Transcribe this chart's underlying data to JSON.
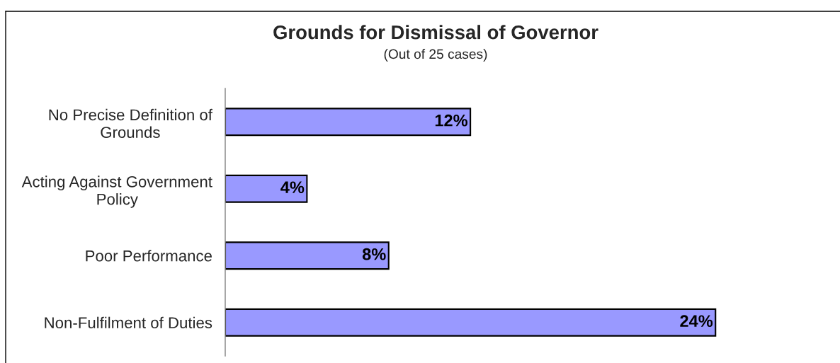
{
  "chart_data": {
    "type": "bar",
    "orientation": "horizontal",
    "title": "Grounds for Dismissal of Governor",
    "subtitle": "(Out of 25 cases)",
    "categories": [
      "No Precise Definition of\nGrounds",
      "Acting Against Government\nPolicy",
      "Poor Performance",
      "Non-Fulfilment of Duties"
    ],
    "values": [
      12,
      4,
      8,
      24
    ],
    "value_labels": [
      "12%",
      "4%",
      "8%",
      "24%"
    ],
    "color": "#9999ff",
    "tick_labels": "y",
    "grid": false,
    "legend": false
  }
}
